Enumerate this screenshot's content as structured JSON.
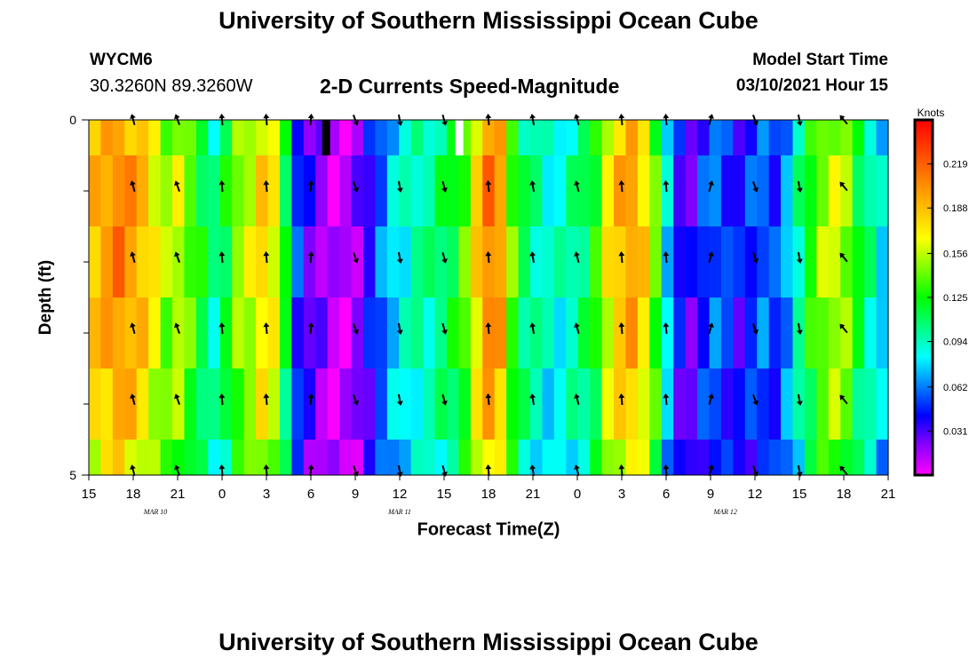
{
  "header": {
    "title": "University of Southern Mississippi Ocean Cube",
    "station": "WYCM6",
    "coords": "30.3260N 89.3260W",
    "subtitle": "2-D Currents Speed-Magnitude",
    "model_start_label": "Model Start Time",
    "model_start_value": "03/10/2021 Hour 15"
  },
  "footer": {
    "title": "University of Southern Mississippi Ocean Cube"
  },
  "chart_data": {
    "type": "heatmap",
    "title": "2-D Currents Speed-Magnitude",
    "xlabel": "Forecast Time(Z)",
    "ylabel": "Depth (ft)",
    "x_tick_labels": [
      "15",
      "18",
      "21",
      "0",
      "3",
      "6",
      "9",
      "12",
      "15",
      "18",
      "21",
      "0",
      "3",
      "6",
      "9",
      "12",
      "15",
      "18",
      "21"
    ],
    "x_hours_range": [
      0,
      54
    ],
    "date_labels": [
      {
        "text": "MAR 10",
        "hour": 4.5
      },
      {
        "text": "MAR 11",
        "hour": 21
      },
      {
        "text": "MAR 12",
        "hour": 43
      }
    ],
    "y_tick_labels": [
      "0",
      "5"
    ],
    "ylim": [
      0,
      5
    ],
    "depth_levels": 6,
    "colorbar": {
      "units": "Knots",
      "range": [
        0,
        0.25
      ],
      "tick_labels": [
        "0.219",
        "0.188",
        "0.156",
        "0.125",
        "0.094",
        "0.062",
        "0.031"
      ],
      "tick_values": [
        0.219,
        0.188,
        0.156,
        0.125,
        0.094,
        0.062,
        0.031
      ],
      "colors": [
        "#ff00ff",
        "#8c00ff",
        "#0000ff",
        "#0080ff",
        "#00ffff",
        "#00ff80",
        "#00ff00",
        "#80ff00",
        "#ffff00",
        "#ffc000",
        "#ff8000",
        "#ff4000",
        "#ff0000"
      ]
    },
    "speed_profile": [
      0.19,
      0.2,
      0.21,
      0.2,
      0.19,
      0.17,
      0.15,
      0.16,
      0.14,
      0.12,
      0.1,
      0.12,
      0.15,
      0.16,
      0.18,
      0.17,
      0.12,
      0.05,
      0.03,
      0.02,
      0.01,
      0.01,
      0.02,
      0.04,
      0.06,
      0.08,
      0.09,
      0.1,
      0.1,
      0.11,
      0.12,
      0.14,
      0.18,
      0.21,
      0.2,
      0.14,
      0.11,
      0.1,
      0.09,
      0.09,
      0.1,
      0.11,
      0.13,
      0.17,
      0.19,
      0.2,
      0.18,
      0.14,
      0.08,
      0.04,
      0.03,
      0.05,
      0.06,
      0.05,
      0.04,
      0.05,
      0.06,
      0.05,
      0.07,
      0.1,
      0.13,
      0.15,
      0.16,
      0.15,
      0.12,
      0.1,
      0.08
    ],
    "missing_cells": [
      {
        "hour": 16,
        "depth": 0,
        "color": "#000000"
      },
      {
        "hour": 25,
        "depth": 0,
        "color": "#ffffff"
      }
    ],
    "arrows": {
      "hours": [
        3,
        6,
        9,
        12,
        15,
        18,
        21,
        24,
        27,
        30,
        33,
        36,
        39,
        42,
        45,
        48,
        51
      ],
      "depth_rows": [
        0,
        1,
        2,
        3,
        4,
        5
      ],
      "direction_deg": [
        345,
        340,
        355,
        355,
        5,
        160,
        170,
        165,
        355,
        350,
        345,
        355,
        355,
        15,
        160,
        170,
        320
      ]
    }
  }
}
